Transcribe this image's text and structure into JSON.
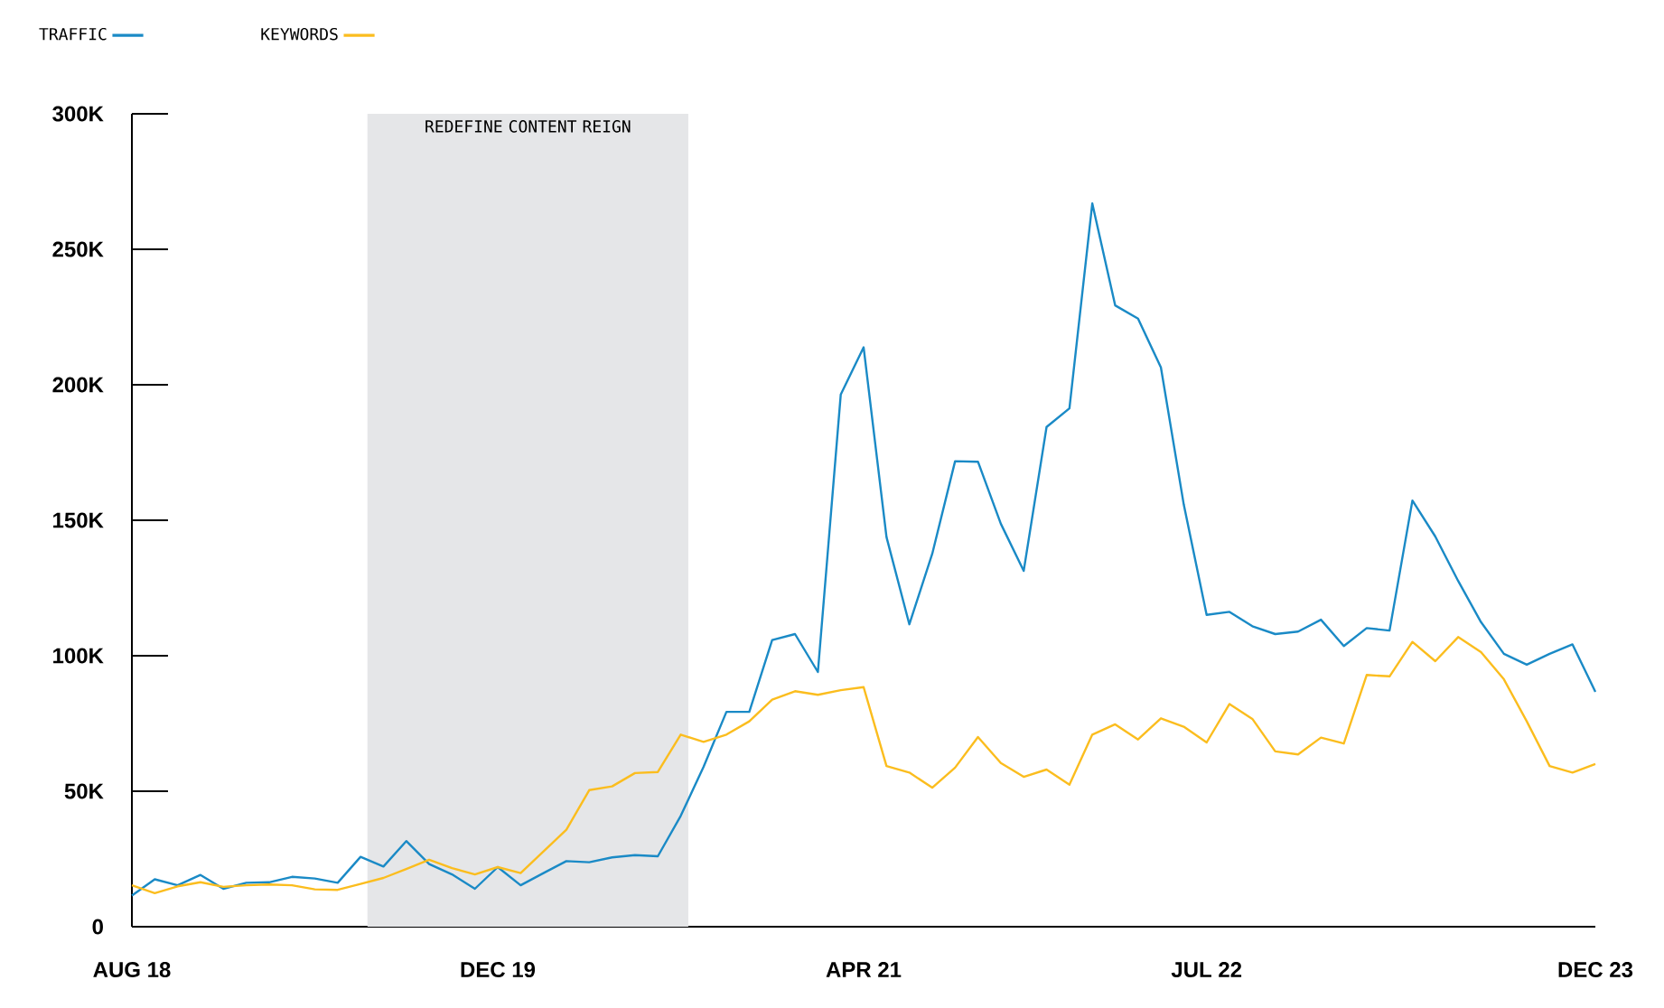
{
  "chart_data": {
    "type": "line",
    "x": [
      "2018-08",
      "2018-09",
      "2018-10",
      "2018-11",
      "2018-12",
      "2019-01",
      "2019-02",
      "2019-03",
      "2019-04",
      "2019-05",
      "2019-06",
      "2019-07",
      "2019-08",
      "2019-09",
      "2019-10",
      "2019-11",
      "2019-12",
      "2020-01",
      "2020-02",
      "2020-03",
      "2020-04",
      "2020-05",
      "2020-06",
      "2020-07",
      "2020-08",
      "2020-09",
      "2020-10",
      "2020-11",
      "2020-12",
      "2021-01",
      "2021-02",
      "2021-03",
      "2021-04",
      "2021-05",
      "2021-06",
      "2021-07",
      "2021-08",
      "2021-09",
      "2021-10",
      "2021-11",
      "2021-12",
      "2022-01",
      "2022-02",
      "2022-03",
      "2022-04",
      "2022-05",
      "2022-06",
      "2022-07",
      "2022-08",
      "2022-09",
      "2022-10",
      "2022-11",
      "2022-12",
      "2023-01",
      "2023-02",
      "2023-03",
      "2023-04",
      "2023-05",
      "2023-06",
      "2023-07",
      "2023-08",
      "2023-09",
      "2023-10",
      "2023-11",
      "2023-12"
    ],
    "series": [
      {
        "name": "TRAFFIC",
        "color": "#1a8ac6",
        "values": [
          11500,
          17500,
          15300,
          19100,
          14000,
          16200,
          16400,
          18400,
          17800,
          16200,
          25800,
          22200,
          31600,
          23100,
          19300,
          14000,
          22000,
          15300,
          19800,
          24200,
          23800,
          25600,
          26400,
          26000,
          40900,
          59000,
          79300,
          79300,
          105800,
          108000,
          94000,
          196400,
          213800,
          143800,
          111600,
          137600,
          171800,
          171600,
          148700,
          131300,
          184400,
          191300,
          266900,
          229300,
          224400,
          206400,
          155800,
          115100,
          116200,
          110900,
          108000,
          108900,
          113300,
          103600,
          110200,
          109300,
          157300,
          144000,
          127600,
          112400,
          100700,
          96700,
          100700,
          104200,
          86700
        ]
      },
      {
        "name": "KEYWORDS",
        "color": "#fbbd1e",
        "values": [
          15300,
          12400,
          14900,
          16400,
          14700,
          15300,
          15600,
          15300,
          13800,
          13600,
          15800,
          18000,
          21300,
          24700,
          21600,
          19300,
          22000,
          19800,
          27800,
          35800,
          50400,
          51800,
          56700,
          57100,
          70900,
          68200,
          70900,
          75800,
          83800,
          86900,
          85600,
          87300,
          88400,
          59300,
          56900,
          51300,
          58700,
          70000,
          60400,
          55300,
          58000,
          52400,
          70900,
          74700,
          69100,
          76900,
          73800,
          68000,
          82200,
          76700,
          64700,
          63600,
          69800,
          67600,
          92900,
          92400,
          105100,
          98000,
          106900,
          101300,
          91300,
          75800,
          59300,
          56900,
          60000
        ]
      }
    ],
    "xlim": [
      "2018-08",
      "2023-12"
    ],
    "xticks": [
      {
        "value": "2018-08",
        "label": "AUG 18"
      },
      {
        "value": "2019-12",
        "label": "DEC 19"
      },
      {
        "value": "2021-04",
        "label": "APR 21"
      },
      {
        "value": "2022-07",
        "label": "JUL 22"
      },
      {
        "value": "2023-12",
        "label": "DEC 23"
      }
    ],
    "ylim": [
      0,
      300000
    ],
    "yticks": [
      0,
      {
        "value": 50000,
        "label": "50K"
      },
      {
        "value": 100000,
        "label": "100K"
      },
      {
        "value": 150000,
        "label": "150K"
      },
      {
        "value": 200000,
        "label": "200K"
      },
      {
        "value": 250000,
        "label": "250K"
      },
      {
        "value": 300000,
        "label": "300K"
      }
    ],
    "bands": [
      {
        "axis": "x",
        "from": "2019-06-10",
        "to": "2020-08-11",
        "label": "REDEFINE CONTENT REIGN",
        "color": "#e5e6e8"
      }
    ],
    "legend": "top left",
    "grid": false,
    "marker": "none",
    "line_style": "solid"
  }
}
